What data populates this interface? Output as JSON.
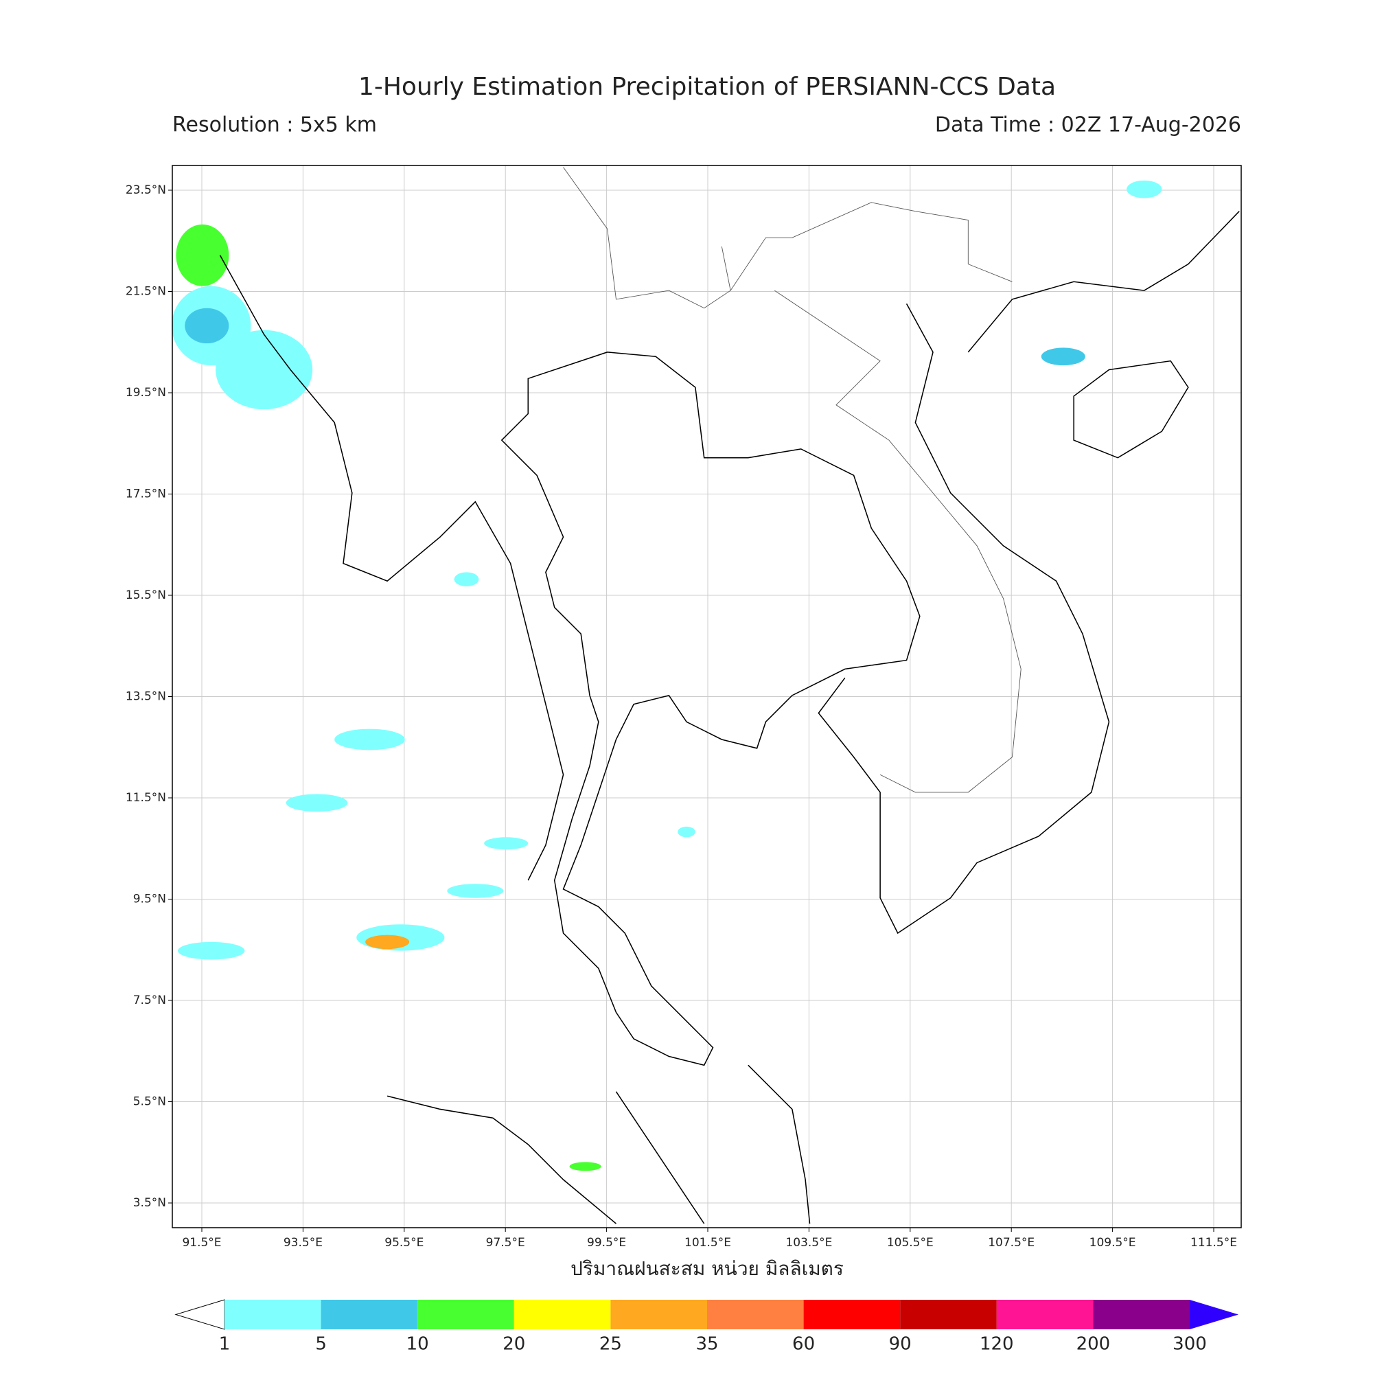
{
  "header": {
    "title": "1-Hourly Estimation Precipitation of PERSIANN-CCS Data",
    "resolution": "Resolution : 5x5 km",
    "data_time": "Data Time : 02Z 17-Aug-2026"
  },
  "map": {
    "lat_ticks": [
      "23.5°N",
      "21.5°N",
      "19.5°N",
      "17.5°N",
      "15.5°N",
      "13.5°N",
      "11.5°N",
      "9.5°N",
      "7.5°N",
      "5.5°N",
      "3.5°N"
    ],
    "lon_ticks": [
      "91.5°E",
      "93.5°E",
      "95.5°E",
      "97.5°E",
      "99.5°E",
      "101.5°E",
      "103.5°E",
      "105.5°E",
      "107.5°E",
      "109.5°E",
      "111.5°E"
    ],
    "x_label": "ปริมาณฝนสะสม หน่วย มิลลิเมตร"
  },
  "colorbar": {
    "levels": [
      1,
      5,
      10,
      20,
      25,
      35,
      60,
      90,
      120,
      200,
      300
    ],
    "colors": [
      "#80ffff",
      "#40c8e8",
      "#48ff30",
      "#ffff00",
      "#ffa820",
      "#ff8040",
      "#ff0000",
      "#c80000",
      "#ff1493",
      "#8b008b",
      "#3000ff"
    ]
  }
}
